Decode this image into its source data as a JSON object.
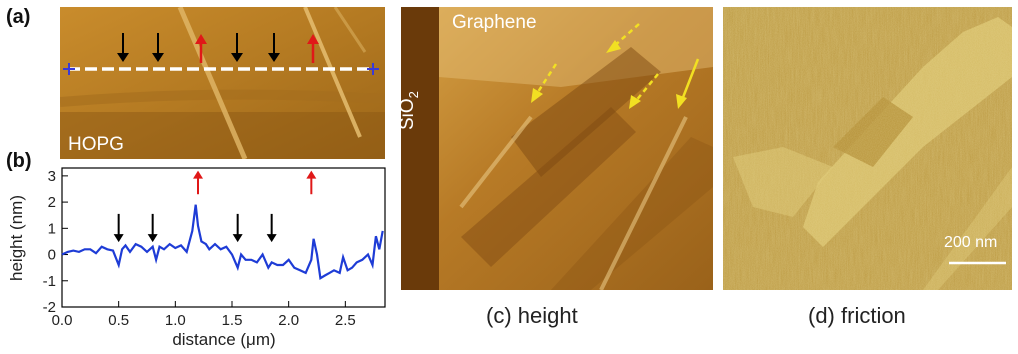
{
  "panels": {
    "a": {
      "letter": "(a)",
      "label": "HOPG"
    },
    "b": {
      "letter": "(b)"
    },
    "c": {
      "label_graphene": "Graphene",
      "label_sio2_main": "SiO",
      "label_sio2_sub": "2",
      "caption": "(c) height"
    },
    "d": {
      "caption": "(d) friction",
      "scale_bar": "200 nm"
    }
  },
  "colors": {
    "profile_line": "#1e3cd6",
    "arrow_black": "#000000",
    "arrow_red": "#e01818",
    "arrow_yellow": "#f2e022",
    "afm_height_base": "#9a6418",
    "afm_friction_base": "#b99a40"
  },
  "chart_data": {
    "type": "line",
    "xlabel_main": "distance (",
    "xlabel_unit": "μm",
    "xlabel_end": ")",
    "ylabel": "height (nm)",
    "xlim": [
      0,
      2.85
    ],
    "ylim": [
      -2,
      3.3
    ],
    "xticks": [
      "0.0",
      "0.5",
      "1.0",
      "1.5",
      "2.0",
      "2.5"
    ],
    "yticks": [
      "-2",
      "-1",
      "0",
      "1",
      "2",
      "3"
    ],
    "series": [
      {
        "x": [
          0.0,
          0.05,
          0.1,
          0.15,
          0.2,
          0.25,
          0.3,
          0.35,
          0.4,
          0.45,
          0.5,
          0.53,
          0.56,
          0.6,
          0.65,
          0.7,
          0.75,
          0.8,
          0.83,
          0.86,
          0.9,
          0.95,
          1.0,
          1.05,
          1.1,
          1.15,
          1.18,
          1.2,
          1.23,
          1.27,
          1.3,
          1.35,
          1.4,
          1.45,
          1.5,
          1.55,
          1.58,
          1.62,
          1.67,
          1.72,
          1.77,
          1.82,
          1.85,
          1.9,
          1.95,
          2.0,
          2.05,
          2.1,
          2.15,
          2.2,
          2.22,
          2.25,
          2.28,
          2.32,
          2.36,
          2.4,
          2.45,
          2.48,
          2.52,
          2.56,
          2.6,
          2.65,
          2.7,
          2.74,
          2.77,
          2.8,
          2.83
        ],
        "y": [
          0.0,
          0.1,
          0.15,
          0.1,
          0.2,
          0.2,
          0.05,
          0.3,
          0.2,
          0.15,
          -0.4,
          0.2,
          0.35,
          0.1,
          0.4,
          0.3,
          0.1,
          0.3,
          -0.2,
          0.3,
          0.2,
          0.4,
          0.25,
          0.35,
          0.1,
          0.9,
          1.9,
          1.1,
          0.5,
          0.4,
          0.2,
          0.4,
          0.2,
          0.3,
          0.0,
          -0.5,
          0.0,
          -0.2,
          -0.2,
          -0.3,
          0.0,
          -0.5,
          -0.3,
          -0.4,
          -0.4,
          -0.2,
          -0.5,
          -0.6,
          -0.7,
          -0.2,
          0.6,
          0.0,
          -0.9,
          -0.8,
          -0.7,
          -0.6,
          -0.7,
          -0.1,
          -0.6,
          -0.5,
          -0.3,
          -0.2,
          0.0,
          -0.4,
          0.7,
          0.2,
          0.9
        ]
      }
    ],
    "arrows": [
      {
        "x": 0.5,
        "color": "black",
        "dir": "down"
      },
      {
        "x": 0.8,
        "color": "black",
        "dir": "down"
      },
      {
        "x": 1.2,
        "color": "red",
        "dir": "up"
      },
      {
        "x": 1.55,
        "color": "black",
        "dir": "down"
      },
      {
        "x": 1.85,
        "color": "black",
        "dir": "down"
      },
      {
        "x": 2.2,
        "color": "red",
        "dir": "up"
      }
    ]
  }
}
